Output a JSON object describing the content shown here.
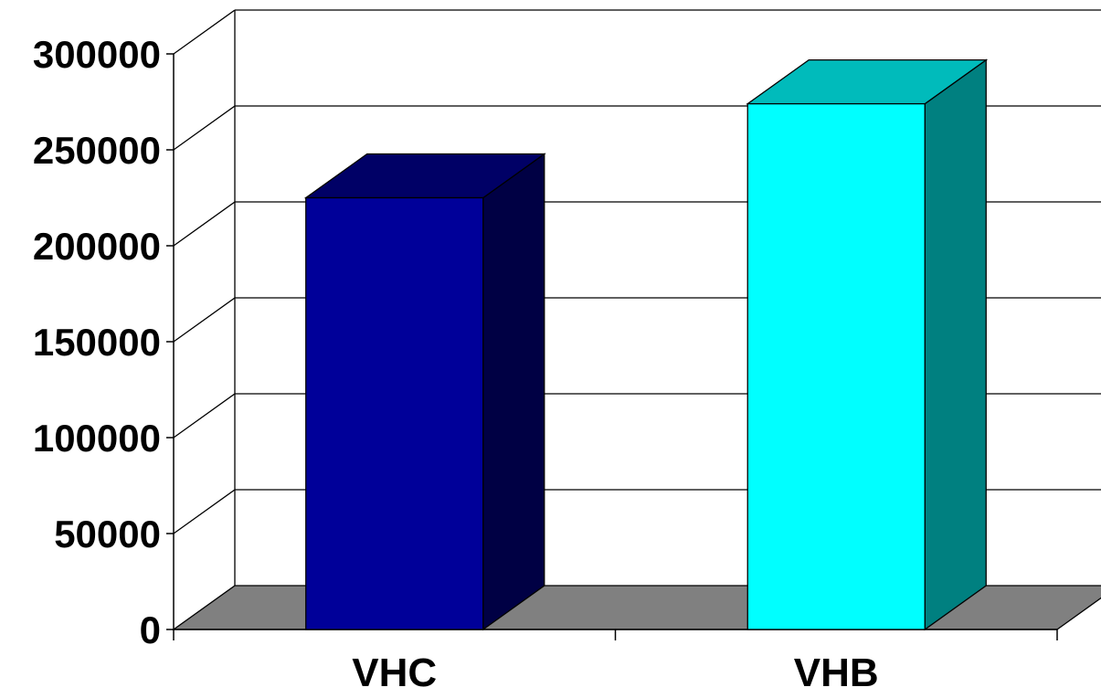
{
  "chart_data": {
    "type": "bar",
    "three_d": true,
    "categories": [
      "VHC",
      "VHB"
    ],
    "values": [
      225000,
      274000
    ],
    "title": "",
    "xlabel": "",
    "ylabel": "",
    "ylim": [
      0,
      300000
    ],
    "yticks": [
      0,
      50000,
      100000,
      150000,
      200000,
      250000,
      300000
    ],
    "ytick_labels": [
      "0",
      "50000",
      "100000",
      "150000",
      "200000",
      "250000",
      "300000"
    ],
    "grid": true,
    "legend": "none",
    "colors": {
      "bars": [
        {
          "front": "#000099",
          "top": "#000066",
          "side": "#000044"
        },
        {
          "front": "#00FFFF",
          "top": "#00BBBB",
          "side": "#008080"
        }
      ],
      "floor": "#808080",
      "gridline": "#000000",
      "background": "#FFFFFF"
    }
  }
}
